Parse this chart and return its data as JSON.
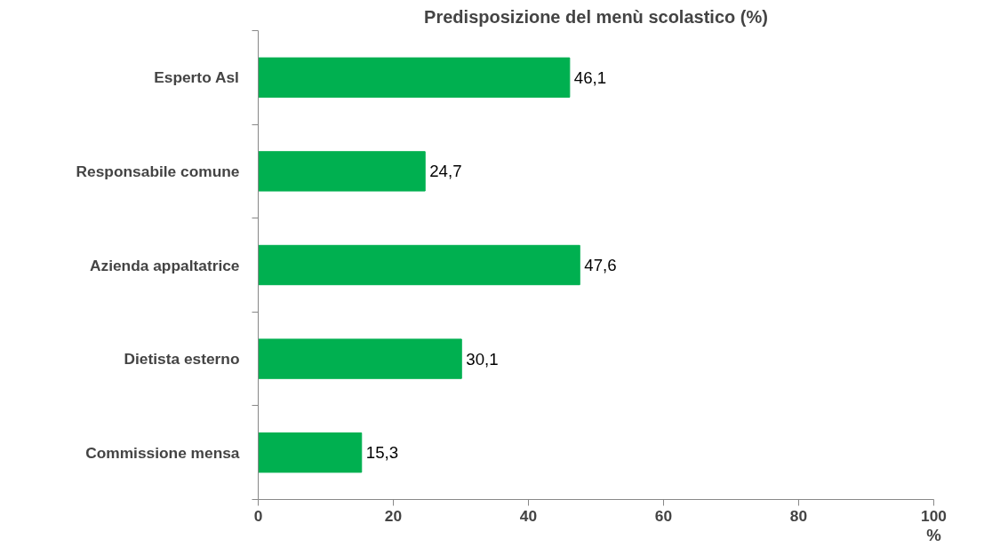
{
  "chart_data": {
    "type": "bar",
    "orientation": "horizontal",
    "title": "Predisposizione del menù scolastico (%)",
    "xlabel": "%",
    "categories": [
      "Esperto Asl",
      "Responsabile comune",
      "Azienda appaltatrice",
      "Dietista esterno",
      "Commissione mensa"
    ],
    "values": [
      46.1,
      24.7,
      47.6,
      30.1,
      15.3
    ],
    "value_labels": [
      "46,1",
      "24,7",
      "47,6",
      "30,1",
      "15,3"
    ],
    "color": "#00b050",
    "xlim": [
      0,
      100
    ],
    "xticks": [
      0,
      20,
      40,
      60,
      80,
      100
    ],
    "grid": false
  }
}
